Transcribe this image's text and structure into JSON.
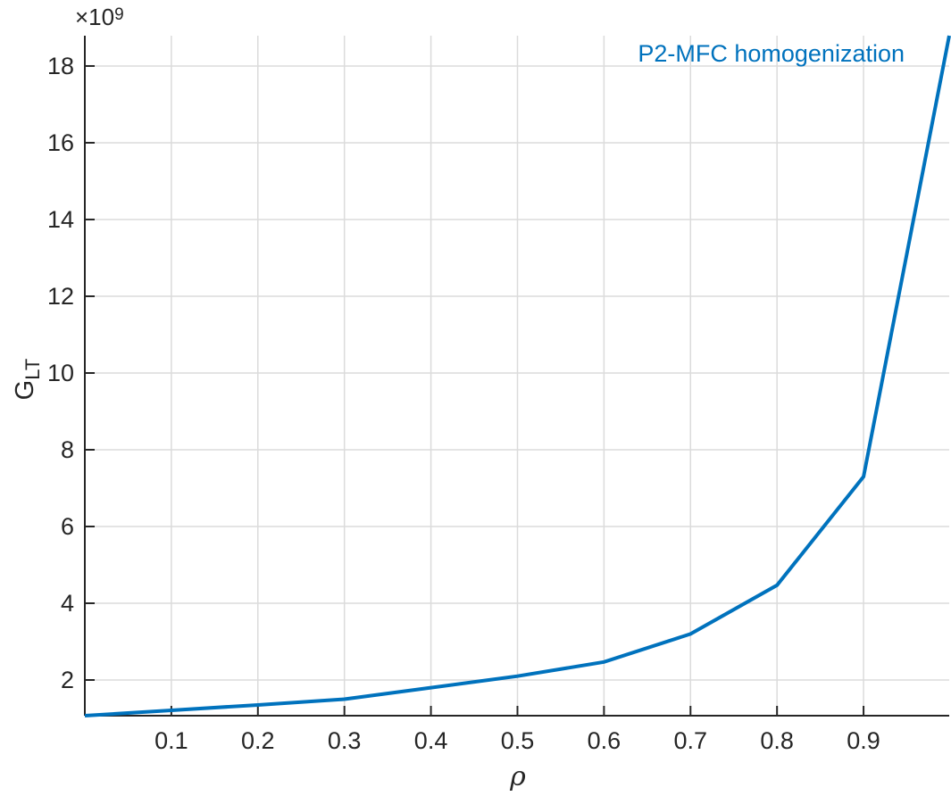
{
  "figure": {
    "background": "#ffffff",
    "legend_label": "P2-MFC homogenization",
    "y_axis_multiplier": {
      "base": "×10",
      "exponent": "9"
    },
    "y_axis_label": {
      "main": "G",
      "subscript": "LT"
    },
    "x_axis_label": "ρ"
  },
  "colors": {
    "series_blue": "#0072BD",
    "axis": "#262626",
    "tick_text": "#262626",
    "grid": "#DBDBDB",
    "background": "#ffffff"
  },
  "chart_data": {
    "type": "line",
    "title": "",
    "xlabel": "ρ",
    "ylabel": "G_LT",
    "y_unit_multiplier": 1000000000.0,
    "xlim": [
      0,
      0.999
    ],
    "ylim_e9": [
      1.07,
      18.79
    ],
    "xticks": [
      0.1,
      0.2,
      0.3,
      0.4,
      0.5,
      0.6,
      0.7,
      0.8,
      0.9
    ],
    "xtick_labels": [
      "0.1",
      "0.2",
      "0.3",
      "0.4",
      "0.5",
      "0.6",
      "0.7",
      "0.8",
      "0.9"
    ],
    "yticks_e9": [
      2,
      4,
      6,
      8,
      10,
      12,
      14,
      16,
      18
    ],
    "ytick_labels": [
      "2",
      "4",
      "6",
      "8",
      "10",
      "12",
      "14",
      "16",
      "18"
    ],
    "grid": true,
    "box": false,
    "tick_direction": "in",
    "legend_position": "top-right-inside-no-box",
    "series": [
      {
        "name": "P2-MFC homogenization",
        "color": "#0072BD",
        "line_width": 4,
        "x": [
          0.0,
          0.1,
          0.2,
          0.3,
          0.4,
          0.5,
          0.6,
          0.7,
          0.8,
          0.9,
          0.999
        ],
        "y_e9": [
          1.07,
          1.21,
          1.35,
          1.5,
          1.8,
          2.1,
          2.47,
          3.2,
          4.47,
          7.3,
          18.79
        ]
      }
    ]
  }
}
